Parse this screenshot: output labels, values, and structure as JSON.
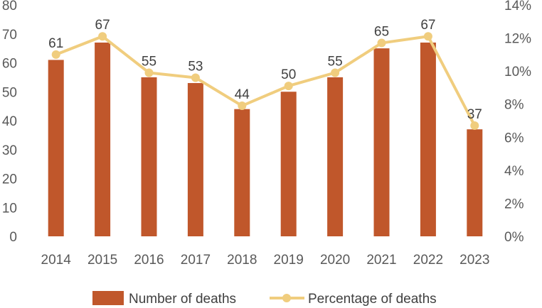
{
  "chart_data": {
    "type": "bar",
    "categories": [
      "2014",
      "2015",
      "2016",
      "2017",
      "2018",
      "2019",
      "2020",
      "2021",
      "2022",
      "2023"
    ],
    "series": [
      {
        "name": "Number of deaths",
        "type": "bar",
        "axis": "left",
        "color": "#c0572b",
        "values": [
          61,
          67,
          55,
          53,
          44,
          50,
          55,
          65,
          67,
          37
        ]
      },
      {
        "name": "Percentage of deaths",
        "type": "line",
        "axis": "right",
        "color": "#f0cd7e",
        "values": [
          11.0,
          12.1,
          9.9,
          9.6,
          7.9,
          9.1,
          9.9,
          11.7,
          12.1,
          6.7
        ]
      }
    ],
    "y_left": {
      "min": 0,
      "max": 80,
      "step": 10,
      "tick_labels": [
        "0",
        "10",
        "20",
        "30",
        "40",
        "50",
        "60",
        "70",
        "80"
      ]
    },
    "y_right": {
      "min": 0,
      "max": 14,
      "step": 2,
      "tick_labels": [
        "0%",
        "2%",
        "4%",
        "6%",
        "8%",
        "10%",
        "12%",
        "14%"
      ]
    },
    "data_labels": [
      "61",
      "67",
      "55",
      "53",
      "44",
      "50",
      "55",
      "65",
      "67",
      "37"
    ],
    "legend": {
      "position": "bottom",
      "items": [
        "Number of deaths",
        "Percentage of deaths"
      ]
    },
    "grid": false
  }
}
